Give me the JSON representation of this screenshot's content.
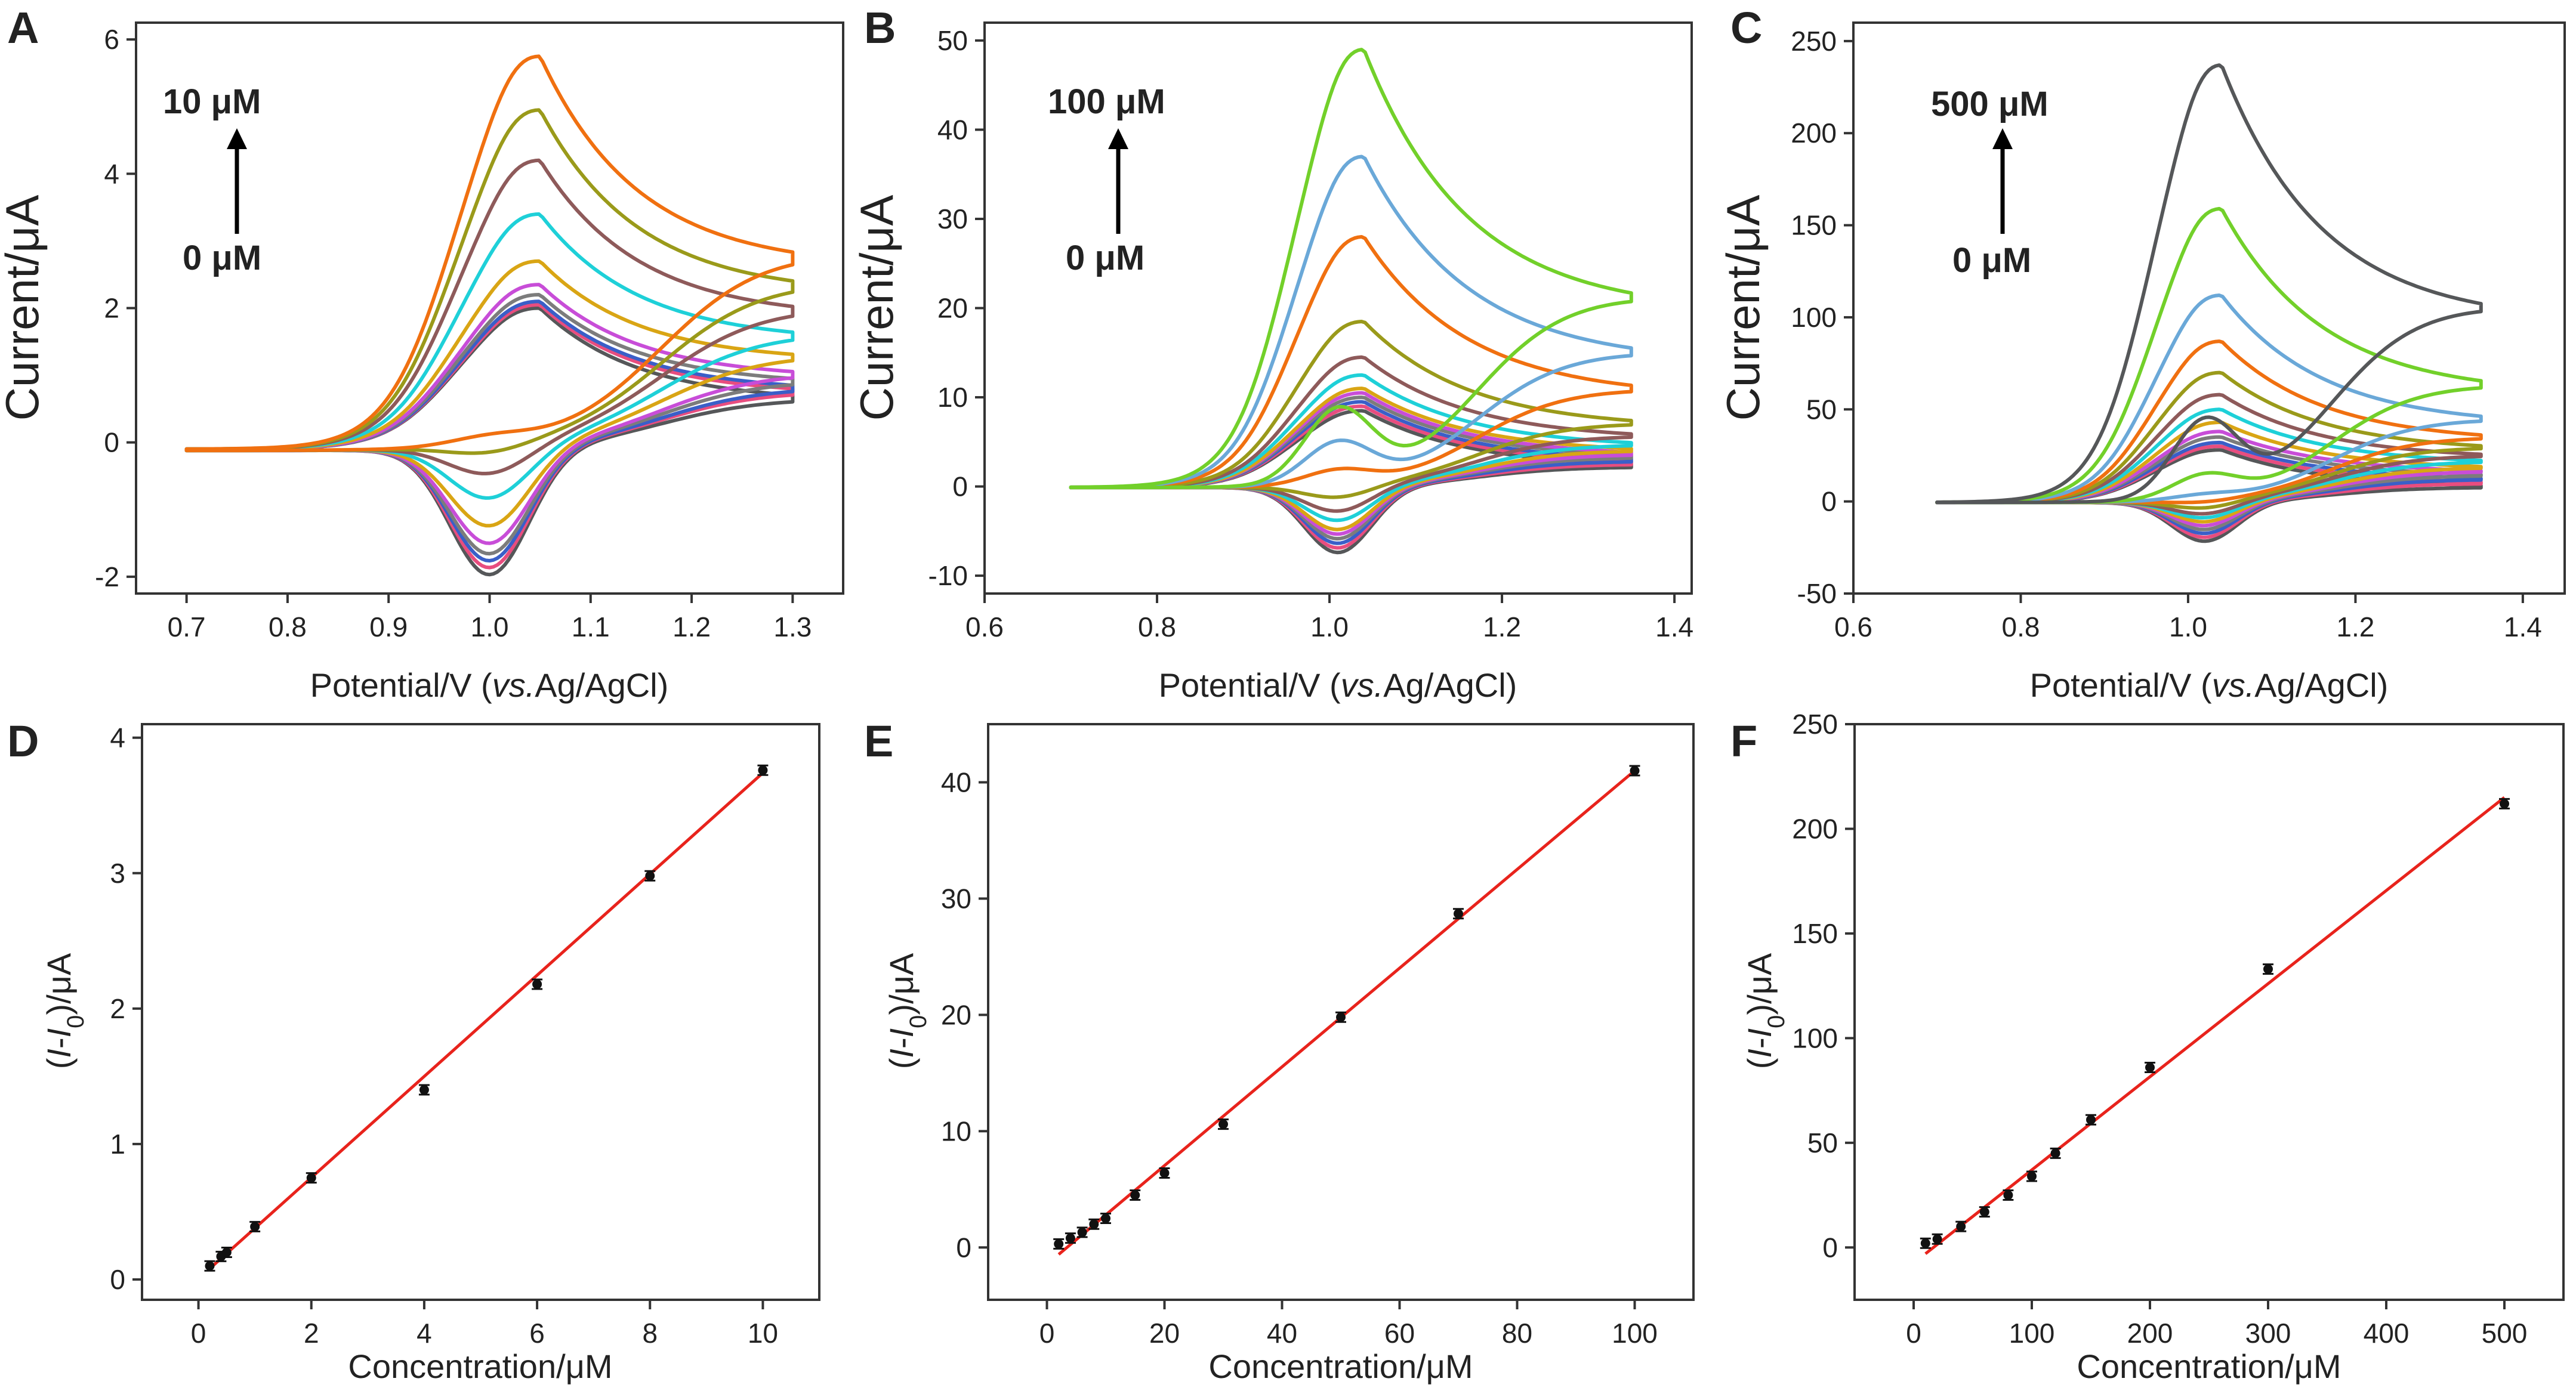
{
  "colors": {
    "frame": "#333333",
    "fit_line": "#e8231c",
    "points": "#111111",
    "cv_palette": [
      "#555759",
      "#e84d7f",
      "#3a5fc8",
      "#7c7c7c",
      "#c84dd8",
      "#d9a514",
      "#1ed0d8",
      "#8e5a5a",
      "#9a9a1a",
      "#f07010",
      "#6aa8d8",
      "#72d02a"
    ]
  },
  "chart_data": [
    {
      "panel": "A",
      "type": "line",
      "subtype": "cyclic-voltammogram",
      "xlabel": "Potential/V (vs.Ag/AgCl)",
      "ylabel": "Current/μA",
      "xlim": [
        0.65,
        1.35
      ],
      "ylim": [
        -2.25,
        6.25
      ],
      "xticks": [
        0.7,
        0.8,
        0.9,
        1.0,
        1.1,
        1.2,
        1.3
      ],
      "xtick_labels": [
        "0.7",
        "0.8",
        "0.9",
        "1.0",
        "1.1",
        "1.2",
        "1.3"
      ],
      "yticks": [
        -2,
        0,
        2,
        4,
        6
      ],
      "ytick_labels": [
        "-2",
        "0",
        "2",
        "4",
        "6"
      ],
      "annotation": {
        "top": "10 μM",
        "bottom": "0 μM"
      },
      "cv": {
        "e_start": 0.7,
        "e_end": 1.3,
        "e_peak_anodic": 1.05,
        "e_peak_cathodic": 1.0,
        "series": [
          {
            "anodic_peak": 2.0,
            "cathodic_peak": -2.0,
            "end_current": 0.6
          },
          {
            "anodic_peak": 2.05,
            "cathodic_peak": -1.9,
            "end_current": 0.7
          },
          {
            "anodic_peak": 2.1,
            "cathodic_peak": -1.8,
            "end_current": 0.75
          },
          {
            "anodic_peak": 2.2,
            "cathodic_peak": -1.7,
            "end_current": 0.85
          },
          {
            "anodic_peak": 2.35,
            "cathodic_peak": -1.55,
            "end_current": 0.95
          },
          {
            "anodic_peak": 2.7,
            "cathodic_peak": -1.3,
            "end_current": 1.2
          },
          {
            "anodic_peak": 3.4,
            "cathodic_peak": -0.9,
            "end_current": 1.5
          },
          {
            "anodic_peak": 4.2,
            "cathodic_peak": -0.55,
            "end_current": 1.85
          },
          {
            "anodic_peak": 4.95,
            "cathodic_peak": -0.25,
            "end_current": 2.2
          },
          {
            "anodic_peak": 5.75,
            "cathodic_peak": 0.0,
            "end_current": 2.6
          }
        ]
      }
    },
    {
      "panel": "B",
      "type": "line",
      "subtype": "cyclic-voltammogram",
      "xlabel": "Potential/V (vs.Ag/AgCl)",
      "ylabel": "Current/μA",
      "xlim": [
        0.6,
        1.42
      ],
      "ylim": [
        -12,
        52
      ],
      "xticks": [
        0.6,
        0.8,
        1.0,
        1.2,
        1.4
      ],
      "xtick_labels": [
        "0.6",
        "0.8",
        "1.0",
        "1.2",
        "1.4"
      ],
      "yticks": [
        -10,
        0,
        10,
        20,
        30,
        40,
        50
      ],
      "ytick_labels": [
        "-10",
        "0",
        "10",
        "20",
        "30",
        "40",
        "50"
      ],
      "annotation": {
        "top": "100 μM",
        "bottom": "0 μM"
      },
      "cv": {
        "e_start": 0.7,
        "e_end": 1.35,
        "e_peak_anodic": 1.04,
        "e_peak_cathodic": 1.01,
        "series": [
          {
            "anodic_peak": 8.5,
            "cathodic_peak": -7.5,
            "end_current": 2.0
          },
          {
            "anodic_peak": 9.0,
            "cathodic_peak": -7.0,
            "end_current": 2.3
          },
          {
            "anodic_peak": 9.5,
            "cathodic_peak": -6.5,
            "end_current": 2.6
          },
          {
            "anodic_peak": 10.0,
            "cathodic_peak": -6.0,
            "end_current": 3.0
          },
          {
            "anodic_peak": 10.5,
            "cathodic_peak": -5.5,
            "end_current": 3.3
          },
          {
            "anodic_peak": 11.0,
            "cathodic_peak": -5.0,
            "end_current": 3.7
          },
          {
            "anodic_peak": 12.5,
            "cathodic_peak": -4.0,
            "end_current": 4.3
          },
          {
            "anodic_peak": 14.5,
            "cathodic_peak": -3.0,
            "end_current": 5.2
          },
          {
            "anodic_peak": 18.5,
            "cathodic_peak": -1.5,
            "end_current": 6.5
          },
          {
            "anodic_peak": 28.0,
            "cathodic_peak": 1.5,
            "end_current": 10.0
          },
          {
            "anodic_peak": 37.0,
            "cathodic_peak": 4.5,
            "end_current": 13.8
          },
          {
            "anodic_peak": 49.0,
            "cathodic_peak": 8.0,
            "end_current": 19.5
          }
        ]
      }
    },
    {
      "panel": "C",
      "type": "line",
      "subtype": "cyclic-voltammogram",
      "xlabel": "Potential/V (vs.Ag/AgCl)",
      "ylabel": "Current/μA",
      "xlim": [
        0.6,
        1.45
      ],
      "ylim": [
        -50,
        260
      ],
      "xticks": [
        0.6,
        0.8,
        1.0,
        1.2,
        1.4
      ],
      "xtick_labels": [
        "0.6",
        "0.8",
        "1.0",
        "1.2",
        "1.4"
      ],
      "yticks": [
        -50,
        0,
        50,
        100,
        150,
        200,
        250
      ],
      "ytick_labels": [
        "-50",
        "0",
        "50",
        "100",
        "150",
        "200",
        "250"
      ],
      "annotation": {
        "top": "500 μM",
        "bottom": "0 μM"
      },
      "cv": {
        "e_start": 0.7,
        "e_end": 1.35,
        "e_peak_anodic": 1.04,
        "e_peak_cathodic": 1.02,
        "series": [
          {
            "anodic_peak": 28,
            "cathodic_peak": -22,
            "end_current": 7
          },
          {
            "anodic_peak": 30,
            "cathodic_peak": -20,
            "end_current": 9
          },
          {
            "anodic_peak": 32,
            "cathodic_peak": -18,
            "end_current": 11
          },
          {
            "anodic_peak": 35,
            "cathodic_peak": -16,
            "end_current": 13
          },
          {
            "anodic_peak": 38,
            "cathodic_peak": -14,
            "end_current": 15
          },
          {
            "anodic_peak": 43,
            "cathodic_peak": -12,
            "end_current": 17
          },
          {
            "anodic_peak": 50,
            "cathodic_peak": -10,
            "end_current": 20
          },
          {
            "anodic_peak": 58,
            "cathodic_peak": -8,
            "end_current": 23
          },
          {
            "anodic_peak": 70,
            "cathodic_peak": -5,
            "end_current": 27
          },
          {
            "anodic_peak": 87,
            "cathodic_peak": -2,
            "end_current": 32
          },
          {
            "anodic_peak": 112,
            "cathodic_peak": 2,
            "end_current": 41
          },
          {
            "anodic_peak": 159,
            "cathodic_peak": 12,
            "end_current": 58
          },
          {
            "anodic_peak": 237,
            "cathodic_peak": 40,
            "end_current": 97
          }
        ]
      }
    },
    {
      "panel": "D",
      "type": "scatter",
      "xlabel": "Concentration/μM",
      "ylabel_parts": [
        "(",
        "I",
        "-",
        "I",
        "0",
        ")/μA"
      ],
      "xlim": [
        -1,
        11
      ],
      "ylim": [
        -0.15,
        4.1
      ],
      "xticks": [
        0,
        2,
        4,
        6,
        8,
        10
      ],
      "xtick_labels": [
        "0",
        "2",
        "4",
        "6",
        "8",
        "10"
      ],
      "yticks": [
        0,
        1,
        2,
        3,
        4
      ],
      "ytick_labels": [
        "0",
        "1",
        "2",
        "3",
        "4"
      ],
      "x": [
        0.2,
        0.4,
        0.5,
        1,
        2,
        4,
        6,
        8,
        10
      ],
      "y": [
        0.1,
        0.17,
        0.2,
        0.39,
        0.75,
        1.4,
        2.18,
        2.98,
        3.76
      ],
      "fit": {
        "x": [
          0.2,
          10
        ],
        "y": [
          0.08,
          3.74
        ]
      }
    },
    {
      "panel": "E",
      "type": "scatter",
      "xlabel": "Concentration/μM",
      "ylabel_parts": [
        "(",
        "I",
        "-",
        "I",
        "0",
        ")/μA"
      ],
      "xlim": [
        -10,
        110
      ],
      "ylim": [
        -4.5,
        45
      ],
      "xticks": [
        0,
        20,
        40,
        60,
        80,
        100
      ],
      "xtick_labels": [
        "0",
        "20",
        "40",
        "60",
        "80",
        "100"
      ],
      "yticks": [
        0,
        10,
        20,
        30,
        40
      ],
      "ytick_labels": [
        "0",
        "10",
        "20",
        "30",
        "40"
      ],
      "x": [
        2,
        4,
        6,
        8,
        10,
        15,
        20,
        30,
        50,
        70,
        100
      ],
      "y": [
        0.3,
        0.8,
        1.3,
        2.0,
        2.5,
        4.5,
        6.4,
        10.6,
        19.8,
        28.7,
        41.0
      ],
      "fit": {
        "x": [
          2,
          100
        ],
        "y": [
          -0.6,
          41.0
        ]
      }
    },
    {
      "panel": "F",
      "type": "scatter",
      "xlabel": "Concentration/μM",
      "ylabel_parts": [
        "(",
        "I",
        "-",
        "I",
        "0",
        ")/μA"
      ],
      "xlim": [
        -50,
        550
      ],
      "ylim": [
        -25,
        250
      ],
      "xticks": [
        0,
        100,
        200,
        300,
        400,
        500
      ],
      "xtick_labels": [
        "0",
        "100",
        "200",
        "300",
        "400",
        "500"
      ],
      "yticks": [
        0,
        50,
        100,
        150,
        200,
        250
      ],
      "ytick_labels": [
        "0",
        "50",
        "100",
        "150",
        "200",
        "250"
      ],
      "x": [
        10,
        20,
        40,
        60,
        80,
        100,
        120,
        150,
        200,
        300,
        500
      ],
      "y": [
        2,
        4,
        10,
        17,
        25,
        34,
        45,
        61,
        86,
        133,
        212
      ],
      "fit": {
        "x": [
          10,
          500
        ],
        "y": [
          -3,
          215
        ]
      }
    }
  ]
}
